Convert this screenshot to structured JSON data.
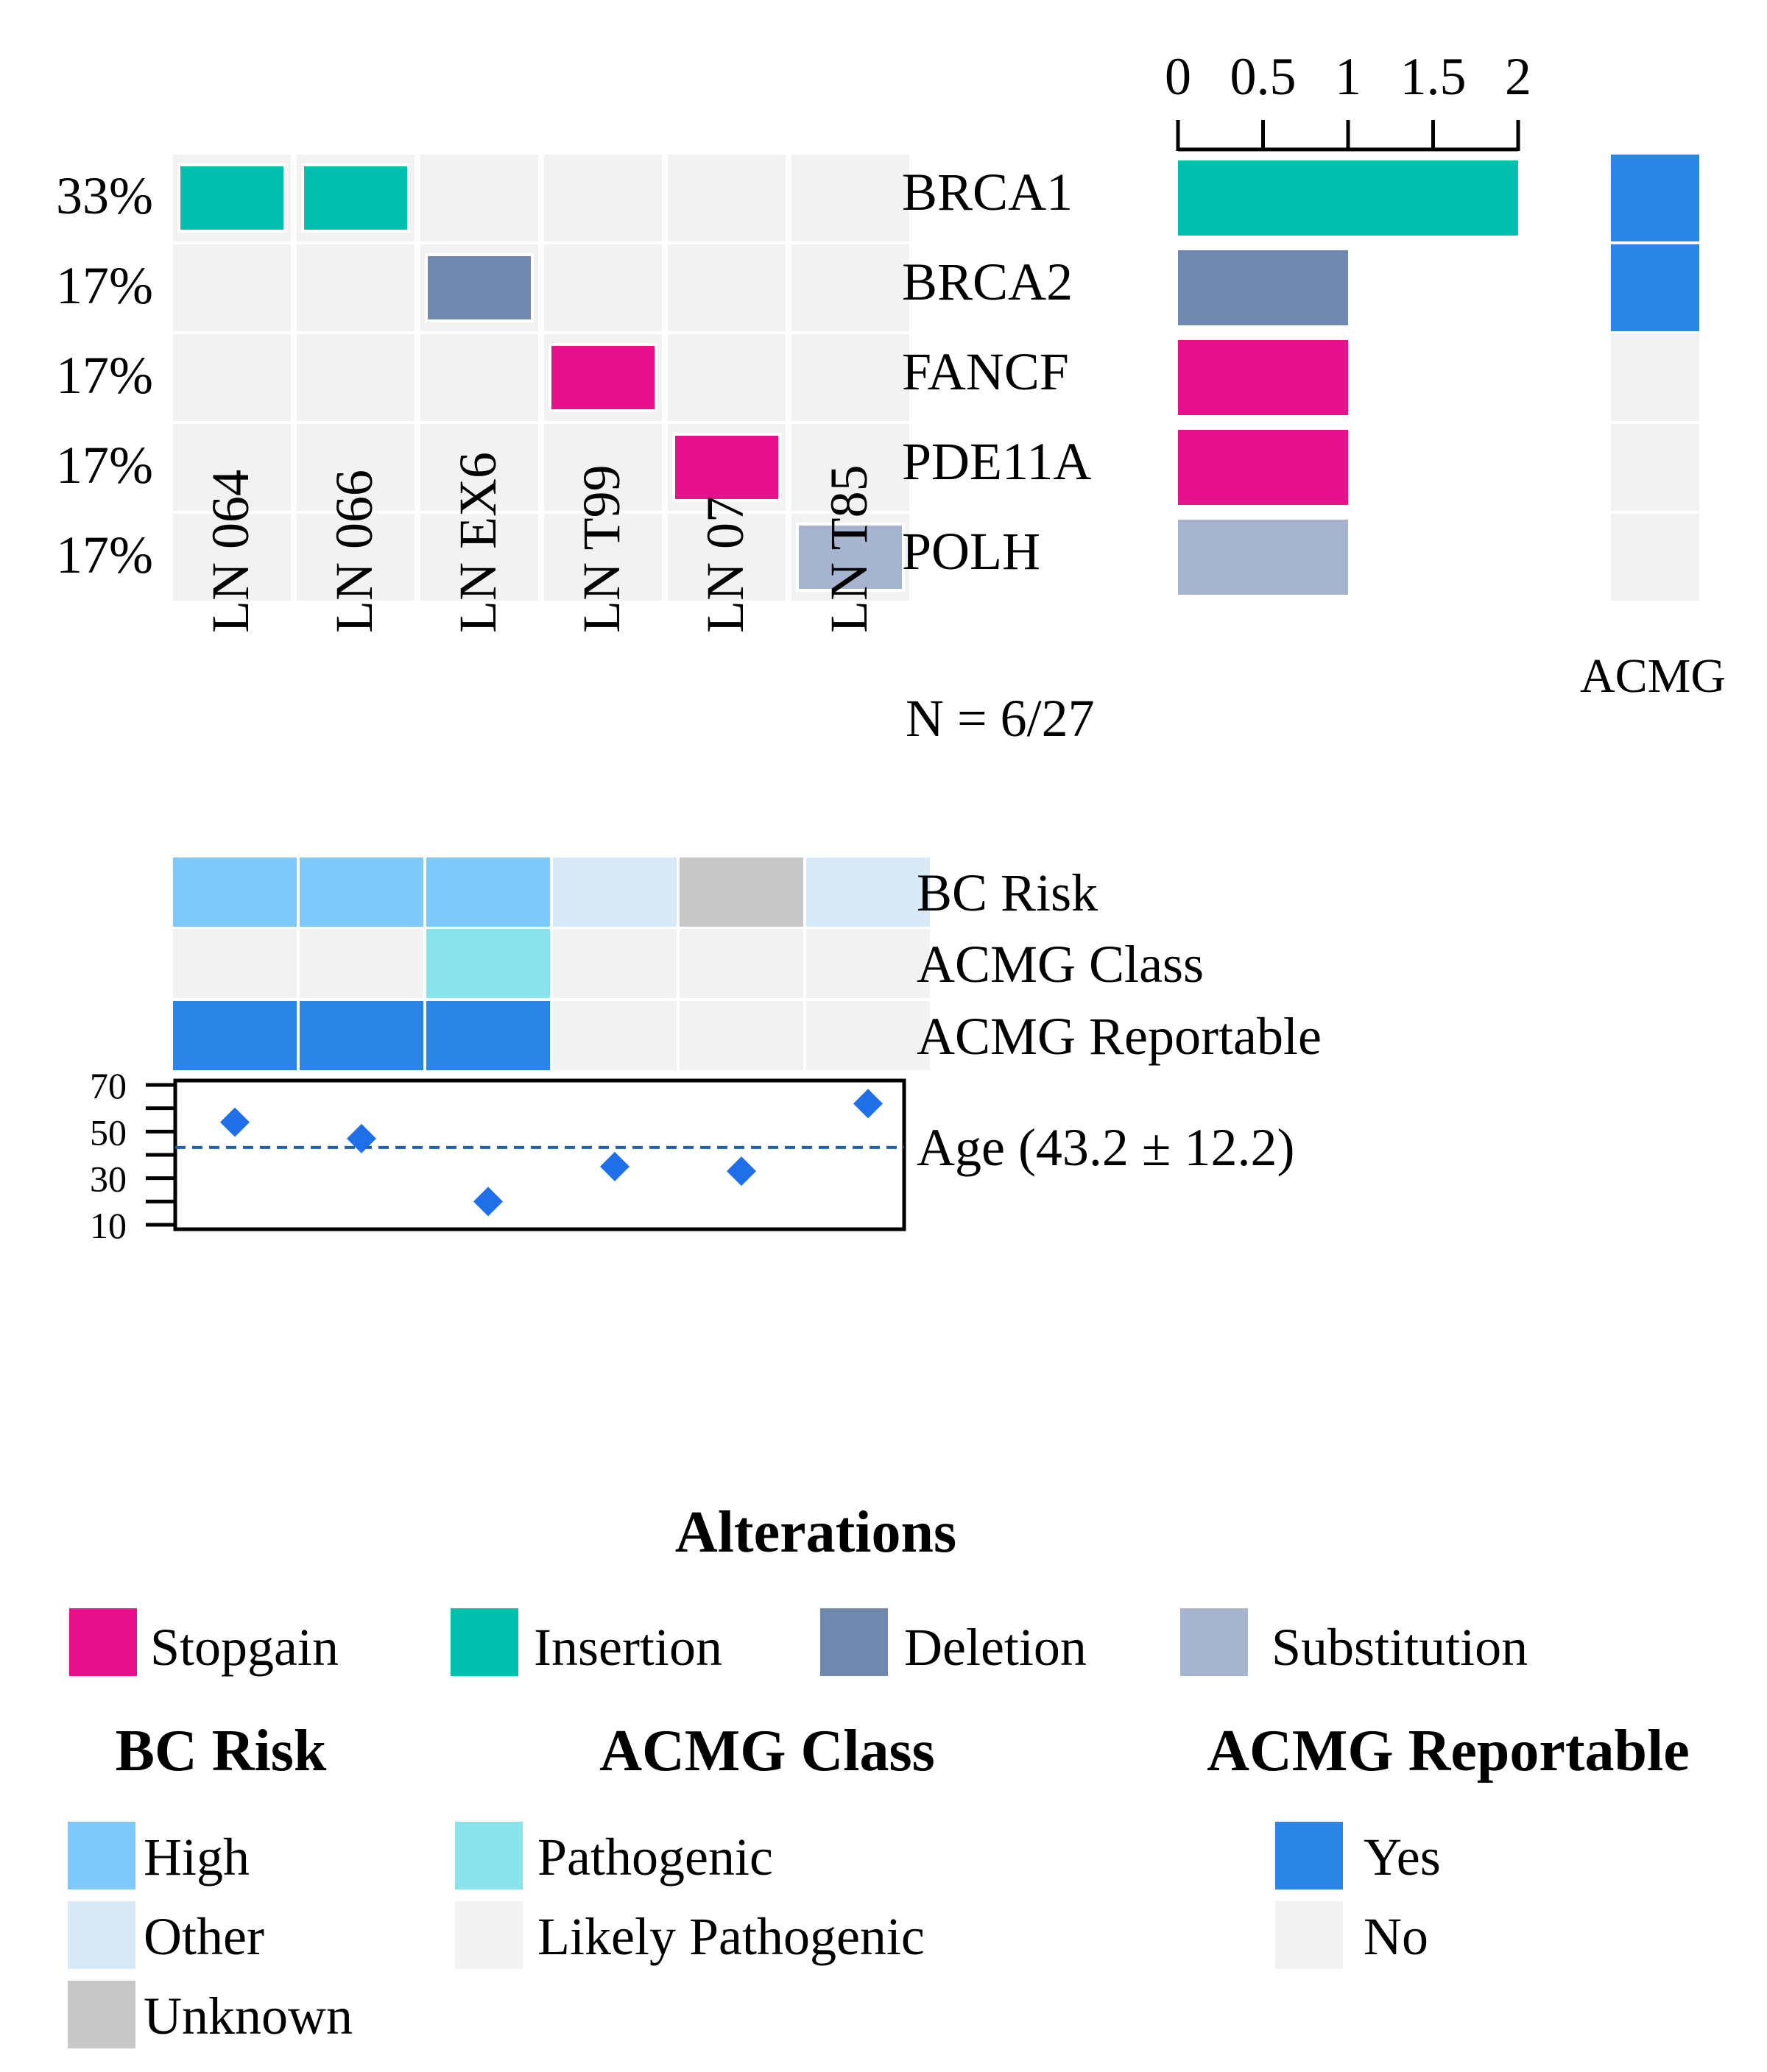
{
  "chart_data": {
    "type": "heatmap",
    "subtype": "oncoprint",
    "genes": [
      "BRCA1",
      "BRCA2",
      "FANCF",
      "PDE11A",
      "POLH"
    ],
    "gene_percent": [
      "33%",
      "17%",
      "17%",
      "17%",
      "17%"
    ],
    "samples": [
      "LN 064",
      "LN 066",
      "LN EX6",
      "LN T99",
      "LN 07",
      "LN T85"
    ],
    "alterations": [
      [
        "Insertion",
        "Insertion",
        null,
        null,
        null,
        null
      ],
      [
        null,
        null,
        "Deletion",
        null,
        null,
        null
      ],
      [
        null,
        null,
        null,
        "Stopgain",
        null,
        null
      ],
      [
        null,
        null,
        null,
        null,
        "Stopgain",
        null
      ],
      [
        null,
        null,
        null,
        null,
        null,
        "Substitution"
      ]
    ],
    "gene_counts": {
      "values": [
        2,
        1,
        1,
        1,
        1
      ],
      "xlim": [
        0,
        2
      ],
      "ticks": [
        "0",
        "0.5",
        "1",
        "1.5",
        "2"
      ],
      "tick_values": [
        0,
        0.5,
        1,
        1.5,
        2
      ]
    },
    "acmg_gene": {
      "label": "ACMG",
      "values": [
        "Yes",
        "Yes",
        "No",
        "No",
        "No"
      ]
    },
    "n_label": "N = 6/27",
    "annotations": [
      {
        "label": "BC Risk",
        "values": [
          "High",
          "High",
          "High",
          "Other",
          "Unknown",
          "Other"
        ]
      },
      {
        "label": "ACMG Class",
        "values": [
          "Likely Pathogenic",
          "Likely Pathogenic",
          "Pathogenic",
          "Likely Pathogenic",
          "Likely Pathogenic",
          "Likely Pathogenic"
        ]
      },
      {
        "label": "ACMG Reportable",
        "values": [
          "Yes",
          "Yes",
          "Yes",
          "No",
          "No",
          "No"
        ]
      }
    ],
    "age": {
      "label": "Age (43.2 ± 12.2)",
      "values": [
        54,
        47,
        20,
        35,
        33,
        62
      ],
      "mean": 43.2,
      "ylim": [
        10,
        70
      ],
      "ticks": [
        "70",
        "50",
        "30",
        "10"
      ],
      "tick_values": [
        70,
        50,
        30,
        10
      ]
    },
    "legends": [
      {
        "title": "Alterations",
        "items": [
          {
            "label": "Stopgain",
            "color": "#E8118C"
          },
          {
            "label": "Insertion",
            "color": "#00BFAC"
          },
          {
            "label": "Deletion",
            "color": "#7089AE"
          },
          {
            "label": "Substitution",
            "color": "#A6B4CF"
          }
        ]
      },
      {
        "title": "BC Risk",
        "items": [
          {
            "label": "High",
            "color": "#7EC8FB"
          },
          {
            "label": "Other",
            "color": "#D8EAF7"
          },
          {
            "label": "Unknown",
            "color": "#C8C8C8"
          }
        ]
      },
      {
        "title": "ACMG Class",
        "items": [
          {
            "label": "Pathogenic",
            "color": "#8AE4EC"
          },
          {
            "label": "Likely Pathogenic",
            "color": "#F2F2F2"
          }
        ]
      },
      {
        "title": "ACMG Reportable",
        "items": [
          {
            "label": "Yes",
            "color": "#2986E7"
          },
          {
            "label": "No",
            "color": "#F2F2F2"
          }
        ]
      }
    ],
    "colors": {
      "background_cell": "#F2F2F2",
      "Stopgain": "#E8118C",
      "Insertion": "#00BFAC",
      "Deletion": "#7089AE",
      "Substitution": "#A6B4CF",
      "High": "#7EC8FB",
      "Other": "#D8EAF7",
      "Unknown": "#C8C8C8",
      "Pathogenic": "#8AE4EC",
      "Likely Pathogenic": "#F2F2F2",
      "Yes": "#2986E7",
      "No": "#F2F2F2",
      "age_point": "#1F6FE8",
      "age_mean_line": "#1F5FAF"
    }
  }
}
